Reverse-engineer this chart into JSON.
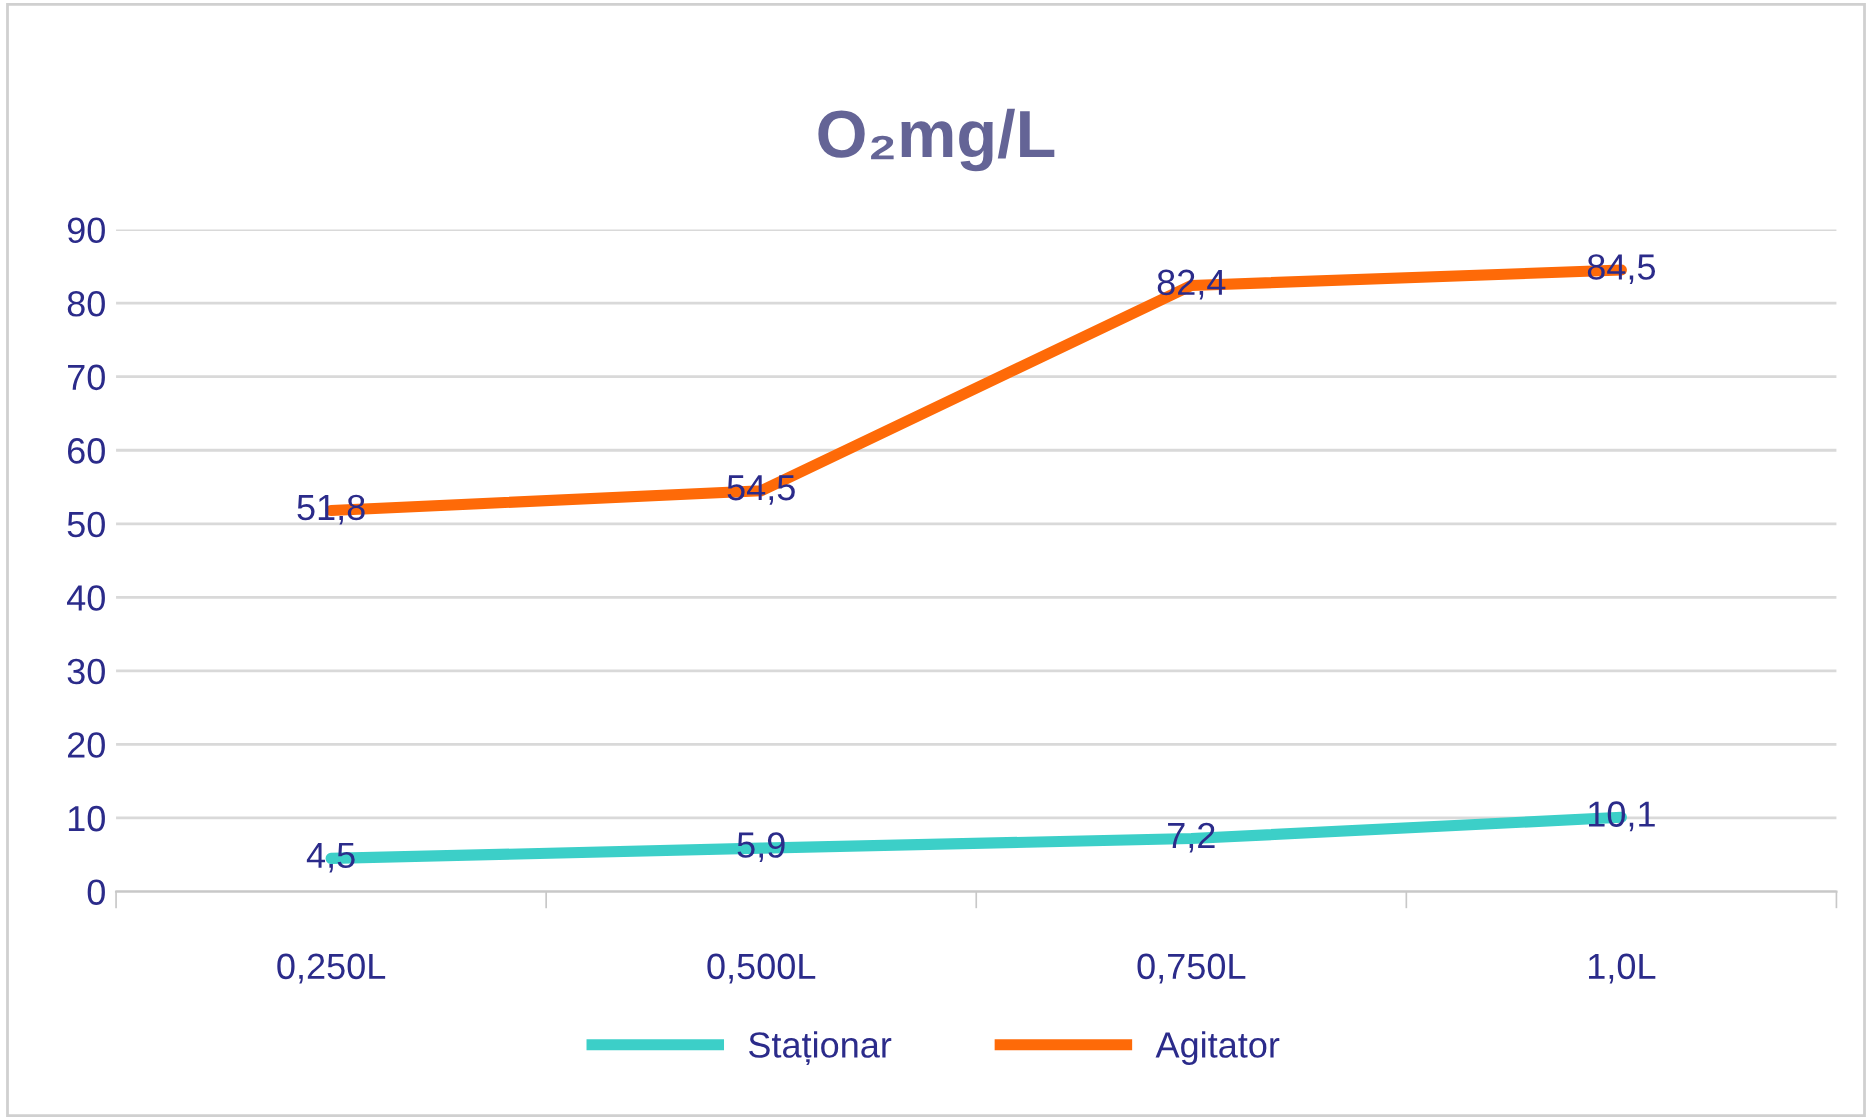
{
  "chart_data": {
    "type": "line",
    "title": "O₂mg/L",
    "categories": [
      "0,250L",
      "0,500L",
      "0,750L",
      "1,0L"
    ],
    "series": [
      {
        "name": "Staționar",
        "color": "#3ccfc8",
        "values": [
          4.5,
          5.9,
          7.2,
          10.1
        ],
        "value_labels": [
          "4,5",
          "5,9",
          "7,2",
          "10,1"
        ]
      },
      {
        "name": "Agitator",
        "color": "#fe6a08",
        "values": [
          51.8,
          54.5,
          82.4,
          84.5
        ],
        "value_labels": [
          "51,8",
          "54,5",
          "82,4",
          "84,5"
        ]
      }
    ],
    "ylim": [
      0,
      90
    ],
    "yticks": [
      0,
      10,
      20,
      30,
      40,
      50,
      60,
      70,
      80,
      90
    ],
    "grid": "y",
    "legend": "bottom",
    "marker": "none",
    "line_style": "solid"
  }
}
